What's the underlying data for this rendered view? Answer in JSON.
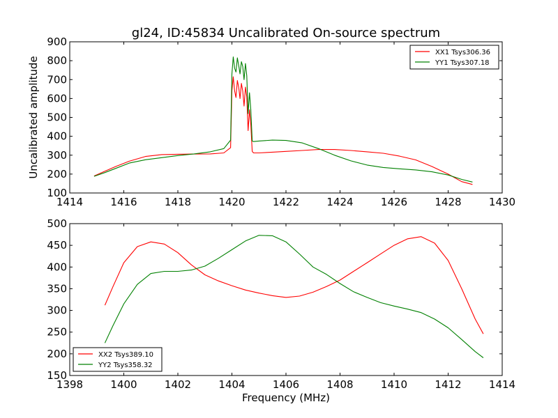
{
  "title": "gl24, ID:45834 Uncalibrated On-source spectrum",
  "colors": {
    "xx": "#ff0000",
    "yy": "#008000"
  },
  "chart_data": [
    {
      "type": "line",
      "ylabel": "Uncalibrated amplitude",
      "xlabel": "",
      "xlim": [
        1414,
        1430
      ],
      "ylim": [
        100,
        900
      ],
      "xticks": [
        "1414",
        "1416",
        "1418",
        "1420",
        "1422",
        "1424",
        "1426",
        "1428",
        "1430"
      ],
      "yticks": [
        "100",
        "200",
        "300",
        "400",
        "500",
        "600",
        "700",
        "800",
        "900"
      ],
      "legend": "top-right",
      "series": [
        {
          "name": "XX1 Tsys306.36",
          "color": "#ff0000",
          "x": [
            1414.9,
            1415.3,
            1415.7,
            1416.2,
            1416.8,
            1417.4,
            1418.0,
            1418.6,
            1419.2,
            1419.7,
            1419.95,
            1420.0,
            1420.05,
            1420.1,
            1420.15,
            1420.2,
            1420.25,
            1420.3,
            1420.35,
            1420.4,
            1420.45,
            1420.5,
            1420.55,
            1420.6,
            1420.65,
            1420.7,
            1420.75,
            1420.8,
            1421.0,
            1421.5,
            1422.0,
            1422.6,
            1423.2,
            1423.8,
            1424.4,
            1425.0,
            1425.6,
            1426.2,
            1426.8,
            1427.4,
            1428.0,
            1428.5,
            1428.9
          ],
          "y": [
            190,
            215,
            240,
            268,
            293,
            303,
            305,
            306,
            307,
            312,
            340,
            640,
            715,
            640,
            605,
            695,
            660,
            600,
            680,
            640,
            560,
            660,
            610,
            430,
            540,
            460,
            320,
            312,
            312,
            316,
            320,
            325,
            330,
            330,
            325,
            318,
            310,
            295,
            275,
            240,
            200,
            160,
            145
          ]
        },
        {
          "name": "YY1 Tsys307.18",
          "color": "#008000",
          "x": [
            1414.9,
            1415.3,
            1415.7,
            1416.2,
            1416.8,
            1417.4,
            1418.0,
            1418.6,
            1419.2,
            1419.7,
            1419.95,
            1420.0,
            1420.05,
            1420.1,
            1420.15,
            1420.2,
            1420.25,
            1420.3,
            1420.35,
            1420.4,
            1420.45,
            1420.5,
            1420.55,
            1420.6,
            1420.65,
            1420.7,
            1420.75,
            1420.8,
            1421.0,
            1421.5,
            1422.0,
            1422.6,
            1423.2,
            1423.8,
            1424.4,
            1425.0,
            1425.6,
            1426.2,
            1426.8,
            1427.4,
            1428.0,
            1428.5,
            1428.9
          ],
          "y": [
            188,
            208,
            230,
            258,
            276,
            287,
            298,
            307,
            318,
            335,
            380,
            730,
            820,
            760,
            740,
            815,
            775,
            730,
            795,
            770,
            700,
            785,
            720,
            520,
            630,
            540,
            375,
            372,
            375,
            380,
            378,
            365,
            335,
            300,
            270,
            248,
            235,
            228,
            222,
            212,
            195,
            172,
            158
          ]
        }
      ]
    },
    {
      "type": "line",
      "ylabel": "",
      "xlabel": "Frequency (MHz)",
      "xlim": [
        1398,
        1414
      ],
      "ylim": [
        150,
        500
      ],
      "xticks": [
        "1398",
        "1400",
        "1402",
        "1404",
        "1406",
        "1408",
        "1410",
        "1412",
        "1414"
      ],
      "yticks": [
        "150",
        "200",
        "250",
        "300",
        "350",
        "400",
        "450",
        "500"
      ],
      "legend": "bottom-left",
      "series": [
        {
          "name": "XX2 Tsys389.10",
          "color": "#ff0000",
          "x": [
            1399.3,
            1399.6,
            1400.0,
            1400.5,
            1401.0,
            1401.5,
            1402.0,
            1402.5,
            1403.0,
            1403.5,
            1404.0,
            1404.5,
            1405.0,
            1405.5,
            1406.0,
            1406.5,
            1407.0,
            1407.5,
            1408.0,
            1408.5,
            1409.0,
            1409.5,
            1410.0,
            1410.5,
            1411.0,
            1411.5,
            1412.0,
            1412.5,
            1413.0,
            1413.3
          ],
          "y": [
            312,
            355,
            410,
            447,
            458,
            453,
            433,
            405,
            382,
            368,
            357,
            347,
            340,
            334,
            330,
            333,
            342,
            355,
            370,
            390,
            410,
            430,
            450,
            465,
            470,
            455,
            415,
            350,
            280,
            246
          ]
        },
        {
          "name": "YY2 Tsys358.32",
          "color": "#008000",
          "x": [
            1399.3,
            1399.6,
            1400.0,
            1400.5,
            1401.0,
            1401.5,
            1402.0,
            1402.5,
            1403.0,
            1403.5,
            1404.0,
            1404.5,
            1405.0,
            1405.5,
            1406.0,
            1406.5,
            1407.0,
            1407.5,
            1408.0,
            1408.5,
            1409.0,
            1409.5,
            1410.0,
            1410.5,
            1411.0,
            1411.5,
            1412.0,
            1412.5,
            1413.0,
            1413.3
          ],
          "y": [
            225,
            265,
            315,
            360,
            385,
            390,
            390,
            393,
            402,
            420,
            440,
            460,
            473,
            472,
            458,
            430,
            400,
            383,
            362,
            343,
            330,
            318,
            310,
            303,
            295,
            280,
            260,
            233,
            205,
            191
          ]
        }
      ]
    }
  ]
}
